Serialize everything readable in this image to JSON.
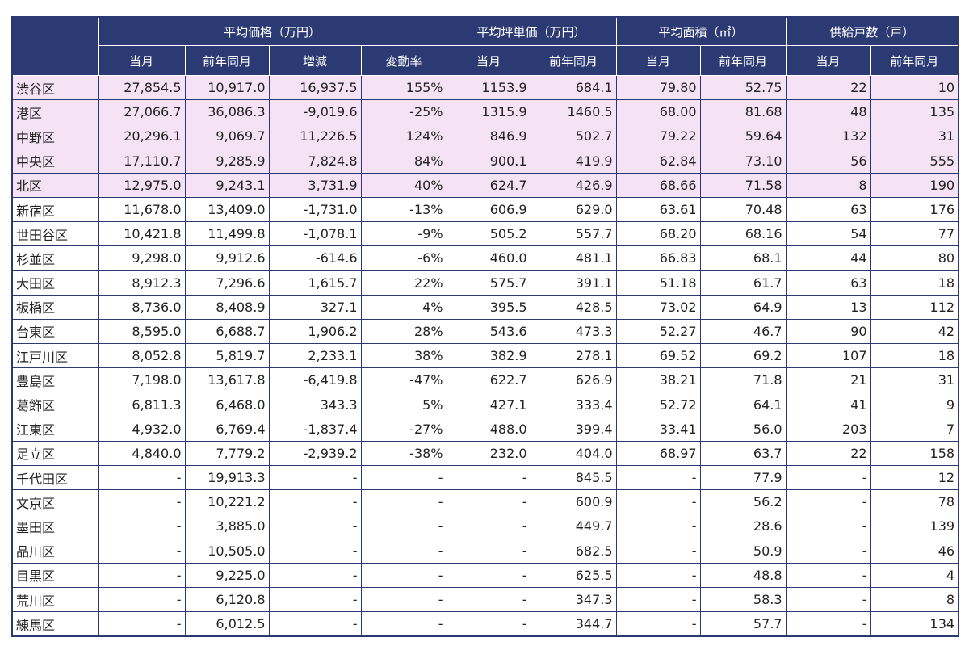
{
  "table": {
    "group_headers": [
      "平均価格（万円）",
      "平均坪単価（万円）",
      "平均面積（㎡）",
      "供給戸数（戸）"
    ],
    "sub_headers": [
      "当月",
      "前年同月",
      "増減",
      "変動率",
      "当月",
      "前年同月",
      "当月",
      "前年同月",
      "当月",
      "前年同月"
    ],
    "rows": [
      {
        "name": "渋谷区",
        "highlight": true,
        "cells": [
          "27,854.5",
          "10,917.0",
          "16,937.5",
          "155%",
          "1153.9",
          "684.1",
          "79.80",
          "52.75",
          "22",
          "10"
        ]
      },
      {
        "name": "港区",
        "highlight": true,
        "cells": [
          "27,066.7",
          "36,086.3",
          "-9,019.6",
          "-25%",
          "1315.9",
          "1460.5",
          "68.00",
          "81.68",
          "48",
          "135"
        ]
      },
      {
        "name": "中野区",
        "highlight": true,
        "cells": [
          "20,296.1",
          "9,069.7",
          "11,226.5",
          "124%",
          "846.9",
          "502.7",
          "79.22",
          "59.64",
          "132",
          "31"
        ]
      },
      {
        "name": "中央区",
        "highlight": true,
        "cells": [
          "17,110.7",
          "9,285.9",
          "7,824.8",
          "84%",
          "900.1",
          "419.9",
          "62.84",
          "73.10",
          "56",
          "555"
        ]
      },
      {
        "name": "北区",
        "highlight": true,
        "cells": [
          "12,975.0",
          "9,243.1",
          "3,731.9",
          "40%",
          "624.7",
          "426.9",
          "68.66",
          "71.58",
          "8",
          "190"
        ]
      },
      {
        "name": "新宿区",
        "highlight": false,
        "cells": [
          "11,678.0",
          "13,409.0",
          "-1,731.0",
          "-13%",
          "606.9",
          "629.0",
          "63.61",
          "70.48",
          "63",
          "176"
        ]
      },
      {
        "name": "世田谷区",
        "highlight": false,
        "cells": [
          "10,421.8",
          "11,499.8",
          "-1,078.1",
          "-9%",
          "505.2",
          "557.7",
          "68.20",
          "68.16",
          "54",
          "77"
        ]
      },
      {
        "name": "杉並区",
        "highlight": false,
        "cells": [
          "9,298.0",
          "9,912.6",
          "-614.6",
          "-6%",
          "460.0",
          "481.1",
          "66.83",
          "68.1",
          "44",
          "80"
        ]
      },
      {
        "name": "大田区",
        "highlight": false,
        "cells": [
          "8,912.3",
          "7,296.6",
          "1,615.7",
          "22%",
          "575.7",
          "391.1",
          "51.18",
          "61.7",
          "63",
          "18"
        ]
      },
      {
        "name": "板橋区",
        "highlight": false,
        "cells": [
          "8,736.0",
          "8,408.9",
          "327.1",
          "4%",
          "395.5",
          "428.5",
          "73.02",
          "64.9",
          "13",
          "112"
        ]
      },
      {
        "name": "台東区",
        "highlight": false,
        "cells": [
          "8,595.0",
          "6,688.7",
          "1,906.2",
          "28%",
          "543.6",
          "473.3",
          "52.27",
          "46.7",
          "90",
          "42"
        ]
      },
      {
        "name": "江戸川区",
        "highlight": false,
        "cells": [
          "8,052.8",
          "5,819.7",
          "2,233.1",
          "38%",
          "382.9",
          "278.1",
          "69.52",
          "69.2",
          "107",
          "18"
        ]
      },
      {
        "name": "豊島区",
        "highlight": false,
        "cells": [
          "7,198.0",
          "13,617.8",
          "-6,419.8",
          "-47%",
          "622.7",
          "626.9",
          "38.21",
          "71.8",
          "21",
          "31"
        ]
      },
      {
        "name": "葛飾区",
        "highlight": false,
        "cells": [
          "6,811.3",
          "6,468.0",
          "343.3",
          "5%",
          "427.1",
          "333.4",
          "52.72",
          "64.1",
          "41",
          "9"
        ]
      },
      {
        "name": "江東区",
        "highlight": false,
        "cells": [
          "4,932.0",
          "6,769.4",
          "-1,837.4",
          "-27%",
          "488.0",
          "399.4",
          "33.41",
          "56.0",
          "203",
          "7"
        ]
      },
      {
        "name": "足立区",
        "highlight": false,
        "cells": [
          "4,840.0",
          "7,779.2",
          "-2,939.2",
          "-38%",
          "232.0",
          "404.0",
          "68.97",
          "63.7",
          "22",
          "158"
        ]
      },
      {
        "name": "千代田区",
        "highlight": false,
        "cells": [
          "-",
          "19,913.3",
          "-",
          "-",
          "-",
          "845.5",
          "-",
          "77.9",
          "-",
          "12"
        ]
      },
      {
        "name": "文京区",
        "highlight": false,
        "cells": [
          "-",
          "10,221.2",
          "-",
          "-",
          "-",
          "600.9",
          "-",
          "56.2",
          "-",
          "78"
        ]
      },
      {
        "name": "墨田区",
        "highlight": false,
        "cells": [
          "-",
          "3,885.0",
          "-",
          "-",
          "-",
          "449.7",
          "-",
          "28.6",
          "-",
          "139"
        ]
      },
      {
        "name": "品川区",
        "highlight": false,
        "cells": [
          "-",
          "10,505.0",
          "-",
          "-",
          "-",
          "682.5",
          "-",
          "50.9",
          "-",
          "46"
        ]
      },
      {
        "name": "目黒区",
        "highlight": false,
        "cells": [
          "-",
          "9,225.0",
          "-",
          "-",
          "-",
          "625.5",
          "-",
          "48.8",
          "-",
          "4"
        ]
      },
      {
        "name": "荒川区",
        "highlight": false,
        "cells": [
          "-",
          "6,120.8",
          "-",
          "-",
          "-",
          "347.3",
          "-",
          "58.3",
          "-",
          "8"
        ]
      },
      {
        "name": "練馬区",
        "highlight": false,
        "cells": [
          "-",
          "6,012.5",
          "-",
          "-",
          "-",
          "344.7",
          "-",
          "57.7",
          "-",
          "134"
        ]
      }
    ]
  }
}
